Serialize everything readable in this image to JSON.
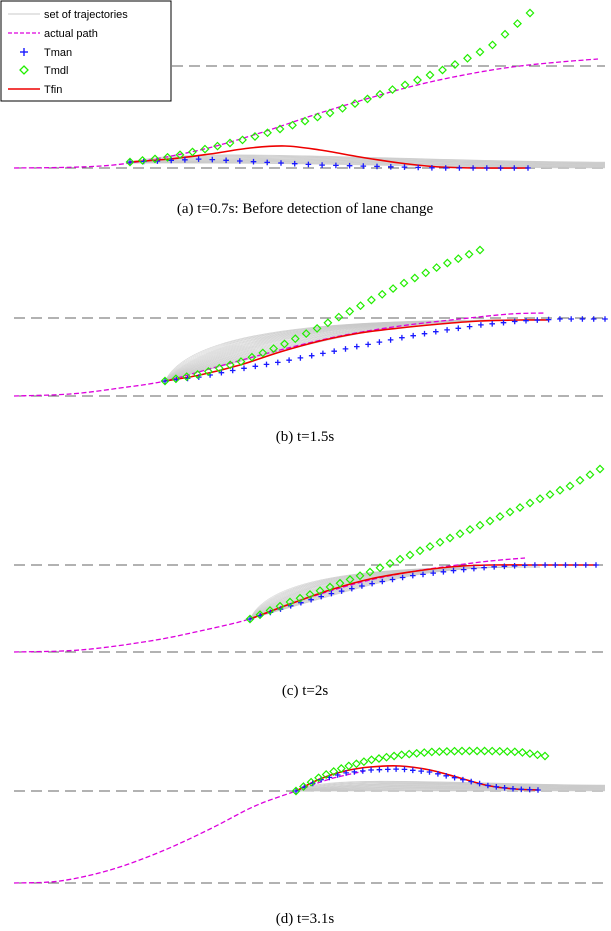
{
  "chart_data": [
    {
      "type": "line",
      "caption": "(a) t=0.7s: Before detection of lane change",
      "legend": {
        "placement": "top-left",
        "entries": [
          {
            "label": "set of trajectories",
            "color": "#c8c8c8",
            "style": "solid-thin"
          },
          {
            "label": "actual path",
            "color": "#dd00dd",
            "style": "dashed"
          },
          {
            "label": "Tman",
            "color": "#1a1aff",
            "style": "plus"
          },
          {
            "label": "Tmdl",
            "color": "#22ee00",
            "style": "diamond"
          },
          {
            "label": "Tfin",
            "color": "#ee0000",
            "style": "solid"
          }
        ]
      },
      "lanes": [
        66,
        168
      ],
      "lane_spans": [
        [
          172,
          605
        ],
        [
          14,
          605
        ]
      ],
      "origin": [
        130,
        163
      ],
      "fan": {
        "end_x": 605,
        "end_y": 168,
        "max_rise": 0,
        "count": 20,
        "upper": false
      },
      "series": {
        "actual_path": [
          [
            14,
            168
          ],
          [
            80,
            167
          ],
          [
            130,
            163
          ],
          [
            200,
            150
          ],
          [
            260,
            133
          ],
          [
            320,
            113
          ],
          [
            380,
            95
          ],
          [
            430,
            82
          ],
          [
            480,
            72
          ],
          [
            520,
            66
          ],
          [
            560,
            62
          ],
          [
            598,
            59
          ]
        ],
        "Tman": [
          [
            130,
            162
          ],
          [
            160,
            161
          ],
          [
            200,
            159
          ],
          [
            240,
            161
          ],
          [
            280,
            163
          ],
          [
            320,
            165
          ],
          [
            360,
            166
          ],
          [
            400,
            167
          ],
          [
            440,
            168
          ],
          [
            480,
            168
          ],
          [
            528,
            168
          ]
        ],
        "Tmdl": [
          [
            130,
            162
          ],
          [
            170,
            157
          ],
          [
            210,
            148
          ],
          [
            250,
            138
          ],
          [
            290,
            126
          ],
          [
            330,
            113
          ],
          [
            370,
            98
          ],
          [
            410,
            83
          ],
          [
            450,
            67
          ],
          [
            490,
            47
          ],
          [
            530,
            13
          ]
        ],
        "Tfin": [
          [
            130,
            162
          ],
          [
            170,
            159
          ],
          [
            210,
            154
          ],
          [
            250,
            148
          ],
          [
            285,
            146
          ],
          [
            320,
            150
          ],
          [
            360,
            157
          ],
          [
            400,
            163
          ],
          [
            440,
            167
          ],
          [
            480,
            168
          ],
          [
            528,
            168
          ]
        ]
      },
      "marker_count": {
        "Tman": 30,
        "Tmdl": 33
      }
    },
    {
      "type": "line",
      "caption": "(b) t=1.5s",
      "lanes": [
        318,
        396
      ],
      "lane_spans": [
        [
          14,
          605
        ],
        [
          14,
          605
        ]
      ],
      "origin": [
        165,
        381
      ],
      "fan": {
        "end_x": 545,
        "end_y": 320,
        "max_rise": 60,
        "count": 30,
        "upper": true
      },
      "series": {
        "actual_path": [
          [
            14,
            396
          ],
          [
            70,
            394
          ],
          [
            120,
            388
          ],
          [
            165,
            381
          ],
          [
            220,
            366
          ],
          [
            280,
            350
          ],
          [
            340,
            336
          ],
          [
            400,
            326
          ],
          [
            460,
            319
          ],
          [
            510,
            314
          ],
          [
            545,
            313
          ]
        ],
        "Tman": [
          [
            165,
            381
          ],
          [
            200,
            377
          ],
          [
            240,
            369
          ],
          [
            280,
            362
          ],
          [
            320,
            354
          ],
          [
            360,
            346
          ],
          [
            400,
            338
          ],
          [
            440,
            331
          ],
          [
            480,
            325
          ],
          [
            520,
            321
          ],
          [
            560,
            319
          ],
          [
            605,
            319
          ]
        ],
        "Tmdl": [
          [
            165,
            381
          ],
          [
            200,
            374
          ],
          [
            240,
            362
          ],
          [
            280,
            346
          ],
          [
            320,
            327
          ],
          [
            360,
            306
          ],
          [
            400,
            285
          ],
          [
            440,
            266
          ],
          [
            480,
            250
          ]
        ],
        "Tfin": [
          [
            165,
            381
          ],
          [
            200,
            375
          ],
          [
            240,
            365
          ],
          [
            280,
            352
          ],
          [
            320,
            341
          ],
          [
            360,
            333
          ],
          [
            400,
            328
          ],
          [
            440,
            324
          ],
          [
            480,
            321
          ],
          [
            520,
            320
          ],
          [
            548,
            320
          ]
        ]
      },
      "marker_count": {
        "Tman": 40,
        "Tmdl": 30
      }
    },
    {
      "type": "line",
      "caption": "(c) t=2s",
      "lanes": [
        565,
        652
      ],
      "lane_spans": [
        [
          14,
          605
        ],
        [
          14,
          605
        ]
      ],
      "origin": [
        250,
        619
      ],
      "fan": {
        "end_x": 540,
        "end_y": 567,
        "max_rise": 50,
        "count": 30,
        "upper": true
      },
      "series": {
        "actual_path": [
          [
            14,
            652
          ],
          [
            80,
            650
          ],
          [
            150,
            641
          ],
          [
            200,
            631
          ],
          [
            250,
            619
          ],
          [
            290,
            604
          ],
          [
            330,
            591
          ],
          [
            370,
            580
          ],
          [
            410,
            572
          ],
          [
            450,
            566
          ],
          [
            490,
            561
          ],
          [
            525,
            558
          ]
        ],
        "Tman": [
          [
            250,
            619
          ],
          [
            290,
            606
          ],
          [
            330,
            594
          ],
          [
            370,
            584
          ],
          [
            410,
            576
          ],
          [
            450,
            571
          ],
          [
            490,
            567
          ],
          [
            530,
            565
          ],
          [
            570,
            565
          ],
          [
            596,
            565
          ]
        ],
        "Tmdl": [
          [
            250,
            619
          ],
          [
            290,
            602
          ],
          [
            330,
            587
          ],
          [
            370,
            572
          ],
          [
            410,
            555
          ],
          [
            450,
            538
          ],
          [
            490,
            521
          ],
          [
            530,
            503
          ],
          [
            570,
            486
          ],
          [
            600,
            469
          ]
        ],
        "Tfin": [
          [
            250,
            619
          ],
          [
            290,
            604
          ],
          [
            330,
            590
          ],
          [
            370,
            579
          ],
          [
            410,
            572
          ],
          [
            450,
            567
          ],
          [
            490,
            565
          ],
          [
            530,
            565
          ],
          [
            570,
            565
          ],
          [
            596,
            565
          ]
        ]
      },
      "marker_count": {
        "Tman": 35,
        "Tmdl": 36
      }
    },
    {
      "type": "line",
      "caption": "(d) t=3.1s",
      "lanes": [
        791,
        883
      ],
      "lane_spans": [
        [
          14,
          605
        ],
        [
          14,
          605
        ]
      ],
      "origin": [
        296,
        791
      ],
      "fan": {
        "end_x": 605,
        "end_y": 791,
        "max_rise": 0,
        "count": 25,
        "upper": false
      },
      "series": {
        "actual_path": [
          [
            14,
            883
          ],
          [
            60,
            881
          ],
          [
            110,
            870
          ],
          [
            160,
            852
          ],
          [
            210,
            829
          ],
          [
            255,
            806
          ],
          [
            296,
            791
          ],
          [
            330,
            779
          ],
          [
            365,
            771
          ]
        ],
        "Tman": [
          [
            296,
            791
          ],
          [
            320,
            780
          ],
          [
            345,
            773
          ],
          [
            370,
            770
          ],
          [
            400,
            769
          ],
          [
            430,
            772
          ],
          [
            460,
            779
          ],
          [
            490,
            786
          ],
          [
            515,
            789
          ],
          [
            538,
            790
          ]
        ],
        "Tmdl": [
          [
            296,
            791
          ],
          [
            320,
            777
          ],
          [
            345,
            767
          ],
          [
            370,
            760
          ],
          [
            400,
            755
          ],
          [
            430,
            752
          ],
          [
            460,
            751
          ],
          [
            490,
            751
          ],
          [
            520,
            752
          ],
          [
            545,
            756
          ]
        ],
        "Tfin": [
          [
            296,
            791
          ],
          [
            320,
            779
          ],
          [
            345,
            771
          ],
          [
            370,
            767
          ],
          [
            400,
            766
          ],
          [
            430,
            770
          ],
          [
            460,
            778
          ],
          [
            490,
            786
          ],
          [
            515,
            789
          ],
          [
            538,
            790
          ]
        ]
      },
      "marker_count": {
        "Tman": 30,
        "Tmdl": 34
      }
    }
  ],
  "colors": {
    "actual_path": "#dd00dd",
    "Tman": "#1a1aff",
    "Tmdl": "#22ee00",
    "Tfin": "#ee0000",
    "trajectories": "#c8c8c8",
    "lane": "#666666"
  }
}
